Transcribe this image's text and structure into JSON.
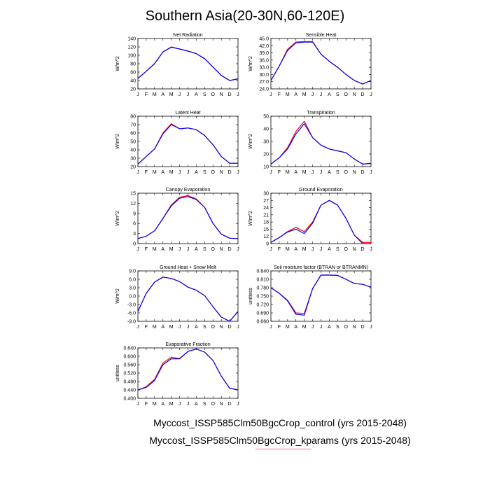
{
  "title": "Southern Asia(20-30N,60-120E)",
  "legend": {
    "control": "Myccost_ISSP585Clm50BgcCrop_control (yrs 2015-2048)",
    "kparams": "Myccost_ISSP585Clm50BgcCrop_kparams (yrs 2015-2048)"
  },
  "colors": {
    "control": "#ff0000",
    "kparams": "#0000ff"
  },
  "chart_data": [
    {
      "type": "line",
      "title": "Net Radiation",
      "ylabel": "W/m^2",
      "categories": [
        "J",
        "F",
        "M",
        "A",
        "M",
        "J",
        "J",
        "A",
        "S",
        "O",
        "N",
        "D",
        "J"
      ],
      "yticks": [
        "20",
        "40",
        "60",
        "80",
        "100",
        "120",
        "140"
      ],
      "ylim": [
        20,
        140
      ],
      "series": [
        {
          "values": [
            45,
            62,
            80,
            108,
            120,
            115,
            110,
            104,
            92,
            72,
            52,
            40,
            44
          ]
        },
        {
          "values": [
            45,
            62,
            80,
            108,
            119,
            115,
            110,
            104,
            92,
            72,
            52,
            40,
            44
          ]
        }
      ]
    },
    {
      "type": "line",
      "title": "Sensible Heat",
      "ylabel": "W/m^2",
      "categories": [
        "J",
        "F",
        "M",
        "A",
        "M",
        "J",
        "J",
        "A",
        "S",
        "O",
        "N",
        "D",
        "J"
      ],
      "yticks": [
        "24.0",
        "27.0",
        "30.0",
        "33.0",
        "36.0",
        "39.0",
        "42.0",
        "45.0"
      ],
      "ylim": [
        24,
        45
      ],
      "series": [
        {
          "values": [
            27.5,
            33.5,
            40.5,
            43.5,
            43.7,
            43.7,
            38.5,
            35.5,
            33,
            30,
            27.5,
            26,
            27.5
          ]
        },
        {
          "values": [
            27.5,
            33.5,
            40.0,
            43.2,
            43.5,
            43.5,
            38.5,
            35.5,
            33,
            30,
            27.5,
            26,
            27.5
          ]
        }
      ]
    },
    {
      "type": "line",
      "title": "Latent Heat",
      "ylabel": "W/m^2",
      "categories": [
        "J",
        "F",
        "M",
        "A",
        "M",
        "J",
        "J",
        "A",
        "S",
        "O",
        "N",
        "D",
        "J"
      ],
      "yticks": [
        "20",
        "30",
        "40",
        "50",
        "60",
        "70",
        "80"
      ],
      "ylim": [
        20,
        80
      ],
      "series": [
        {
          "values": [
            23,
            32,
            41,
            60,
            71,
            65,
            66,
            64,
            57,
            46,
            32,
            24,
            24
          ]
        },
        {
          "values": [
            23,
            32,
            41,
            59,
            70,
            65,
            66,
            64,
            57,
            46,
            32,
            24,
            24
          ]
        }
      ]
    },
    {
      "type": "line",
      "title": "Transpiration",
      "ylabel": "W/m^2",
      "categories": [
        "J",
        "F",
        "M",
        "A",
        "M",
        "J",
        "J",
        "A",
        "S",
        "O",
        "N",
        "D",
        "J"
      ],
      "yticks": [
        "10",
        "20",
        "30",
        "40",
        "50"
      ],
      "ylim": [
        10,
        50
      ],
      "series": [
        {
          "values": [
            12,
            17,
            25,
            38,
            46,
            33,
            27,
            24,
            22.5,
            21,
            16,
            12,
            12.5
          ]
        },
        {
          "values": [
            12,
            17,
            24,
            36,
            44,
            33,
            27,
            24,
            22.5,
            21,
            16,
            12,
            12.5
          ]
        }
      ]
    },
    {
      "type": "line",
      "title": "Canopy Evaporation",
      "ylabel": "W/m^2",
      "categories": [
        "J",
        "F",
        "M",
        "A",
        "M",
        "J",
        "J",
        "A",
        "S",
        "O",
        "N",
        "D",
        "J"
      ],
      "yticks": [
        "0",
        "3",
        "6",
        "9",
        "12",
        "15"
      ],
      "ylim": [
        0,
        15
      ],
      "series": [
        {
          "values": [
            1.5,
            2.2,
            3.8,
            7.5,
            11.5,
            13.8,
            14.3,
            13.3,
            10.8,
            6,
            2.8,
            1.6,
            1.5
          ]
        },
        {
          "values": [
            1.5,
            2.2,
            3.8,
            7.5,
            11.2,
            13.5,
            14.0,
            13.1,
            10.8,
            6,
            2.8,
            1.6,
            1.5
          ]
        }
      ]
    },
    {
      "type": "line",
      "title": "Ground Evaporation",
      "ylabel": "W/m^2",
      "categories": [
        "J",
        "F",
        "M",
        "A",
        "M",
        "J",
        "J",
        "A",
        "S",
        "O",
        "N",
        "D",
        "J"
      ],
      "yticks": [
        "9",
        "12",
        "15",
        "18",
        "21",
        "24",
        "27",
        "30"
      ],
      "ylim": [
        9,
        30
      ],
      "series": [
        {
          "values": [
            9.5,
            11.5,
            14,
            15.8,
            14,
            18,
            25,
            27,
            25,
            19.5,
            12.5,
            9.5,
            9.5
          ]
        },
        {
          "values": [
            9.5,
            11.5,
            13.8,
            15.0,
            13.2,
            17.5,
            25,
            27,
            25,
            19.5,
            12.5,
            9,
            9
          ]
        }
      ]
    },
    {
      "type": "line",
      "title": "Ground Heat + Snow Melt",
      "ylabel": "W/m^2",
      "categories": [
        "J",
        "F",
        "M",
        "A",
        "M",
        "J",
        "J",
        "A",
        "S",
        "O",
        "N",
        "D",
        "J"
      ],
      "yticks": [
        "-9.0",
        "-6.0",
        "-3.0",
        "0.0",
        "3.0",
        "6.0",
        "9.0"
      ],
      "ylim": [
        -9,
        9
      ],
      "series": [
        {
          "values": [
            -5.5,
            1,
            5,
            6.8,
            6.3,
            5.2,
            3.2,
            2.1,
            0.2,
            -3.8,
            -7.5,
            -9,
            -5.5
          ]
        },
        {
          "values": [
            -5.5,
            1,
            5,
            6.8,
            6.3,
            5.2,
            3.2,
            2.1,
            0.2,
            -3.8,
            -7.5,
            -9,
            -5.5
          ]
        }
      ]
    },
    {
      "type": "line",
      "title": "Soil moisture factor (BTRAN or BTRANMN)",
      "ylabel": "unitless",
      "categories": [
        "J",
        "F",
        "M",
        "A",
        "M",
        "J",
        "J",
        "A",
        "S",
        "O",
        "N",
        "D",
        "J"
      ],
      "yticks": [
        "0.660",
        "0.690",
        "0.720",
        "0.750",
        "0.780",
        "0.810",
        "0.840"
      ],
      "ylim": [
        0.66,
        0.84
      ],
      "series": [
        {
          "values": [
            0.78,
            0.76,
            0.735,
            0.69,
            0.688,
            0.777,
            0.825,
            0.825,
            0.824,
            0.81,
            0.795,
            0.792,
            0.782
          ]
        },
        {
          "values": [
            0.78,
            0.76,
            0.733,
            0.685,
            0.682,
            0.777,
            0.825,
            0.825,
            0.824,
            0.81,
            0.795,
            0.792,
            0.782
          ]
        }
      ]
    },
    {
      "type": "line",
      "title": "Evaporative Fraction",
      "ylabel": "unitless",
      "categories": [
        "J",
        "F",
        "M",
        "A",
        "M",
        "J",
        "J",
        "A",
        "S",
        "O",
        "N",
        "D",
        "J"
      ],
      "yticks": [
        "0.400",
        "0.440",
        "0.480",
        "0.520",
        "0.560",
        "0.600",
        "0.640"
      ],
      "ylim": [
        0.4,
        0.64
      ],
      "series": [
        {
          "values": [
            0.44,
            0.455,
            0.49,
            0.568,
            0.595,
            0.59,
            0.623,
            0.635,
            0.62,
            0.58,
            0.505,
            0.448,
            0.44
          ]
        },
        {
          "values": [
            0.44,
            0.452,
            0.485,
            0.56,
            0.588,
            0.588,
            0.623,
            0.635,
            0.62,
            0.58,
            0.505,
            0.448,
            0.44
          ]
        }
      ]
    }
  ]
}
